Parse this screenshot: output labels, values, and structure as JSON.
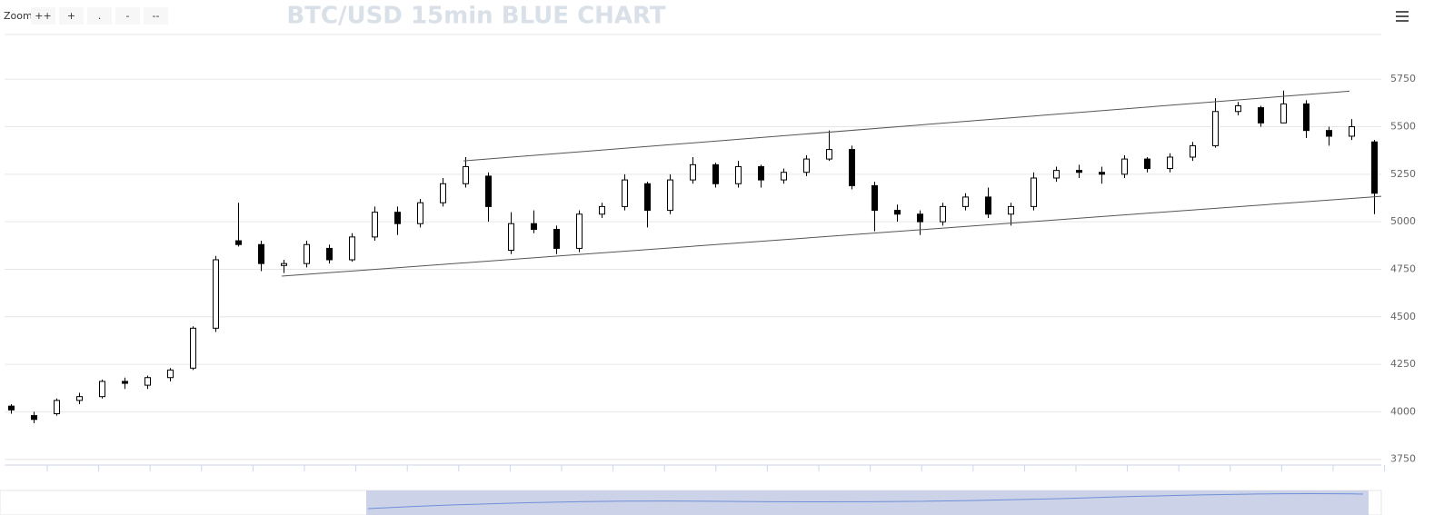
{
  "chart_data": {
    "type": "candlestick",
    "title": "BTC/USD 15min BLUE CHART",
    "zoom": {
      "label": "Zoom",
      "buttons": [
        "++",
        "+",
        ".",
        "-",
        "--"
      ]
    },
    "up_color": "#ffffff",
    "down_color": "#000000",
    "open": [
      4030,
      3980,
      3990,
      4060,
      4080,
      4160,
      4140,
      4180,
      4230,
      4440,
      4900,
      4880,
      4770,
      4780,
      4860,
      4800,
      4920,
      5050,
      4990,
      5100,
      5200,
      5240,
      4850,
      4990,
      4960,
      4860,
      5040,
      5080,
      5200,
      5060,
      5220,
      5300,
      5200,
      5290,
      5220,
      5260,
      5330,
      5380,
      5190,
      5060,
      5040,
      5000,
      5080,
      5130,
      5040,
      5080,
      5230,
      5270,
      5260,
      5250,
      5330,
      5280,
      5340,
      5400,
      5580,
      5600,
      5520,
      5620,
      5480,
      5450,
      5420
    ],
    "high": [
      4040,
      4000,
      4070,
      4100,
      4170,
      4180,
      4190,
      4230,
      4450,
      4820,
      5100,
      4900,
      4800,
      4900,
      4880,
      4940,
      5080,
      5080,
      5120,
      5230,
      5340,
      5260,
      5050,
      5060,
      4980,
      5060,
      5100,
      5250,
      5210,
      5250,
      5340,
      5310,
      5320,
      5300,
      5280,
      5350,
      5480,
      5400,
      5210,
      5090,
      5060,
      5100,
      5150,
      5180,
      5100,
      5260,
      5290,
      5300,
      5290,
      5350,
      5340,
      5360,
      5420,
      5650,
      5630,
      5610,
      5690,
      5640,
      5500,
      5540,
      5430
    ],
    "low": [
      3990,
      3940,
      3980,
      4040,
      4070,
      4120,
      4120,
      4160,
      4220,
      4420,
      4870,
      4740,
      4730,
      4760,
      4780,
      4790,
      4900,
      4930,
      4970,
      5080,
      5180,
      5000,
      4830,
      4940,
      4830,
      4840,
      5020,
      5060,
      4970,
      5040,
      5200,
      5180,
      5180,
      5180,
      5200,
      5240,
      5320,
      5170,
      4950,
      5000,
      4930,
      4980,
      5060,
      5020,
      4980,
      5060,
      5210,
      5230,
      5200,
      5230,
      5260,
      5260,
      5320,
      5390,
      5560,
      5500,
      5520,
      5440,
      5400,
      5430,
      5040
    ],
    "close": [
      4010,
      3960,
      4060,
      4080,
      4160,
      4150,
      4180,
      4220,
      4440,
      4800,
      4880,
      4780,
      4780,
      4880,
      4800,
      4920,
      5050,
      4990,
      5100,
      5200,
      5290,
      5080,
      4990,
      4960,
      4860,
      5040,
      5080,
      5220,
      5060,
      5220,
      5300,
      5200,
      5290,
      5220,
      5260,
      5330,
      5380,
      5190,
      5060,
      5040,
      5000,
      5080,
      5130,
      5040,
      5080,
      5230,
      5270,
      5260,
      5250,
      5330,
      5280,
      5340,
      5400,
      5580,
      5610,
      5520,
      5620,
      5480,
      5450,
      5500,
      5150
    ],
    "trendlines": [
      {
        "start": [
          19.9,
          5320
        ],
        "end": [
          58.9,
          5687
        ]
      },
      {
        "start": [
          11.9,
          4714
        ],
        "end": [
          60.3,
          5134
        ]
      }
    ],
    "ylim": [
      3720,
      5985
    ],
    "yticks": [
      3750,
      4000,
      4250,
      4500,
      4750,
      5000,
      5250,
      5500,
      5750
    ],
    "grid": true
  }
}
